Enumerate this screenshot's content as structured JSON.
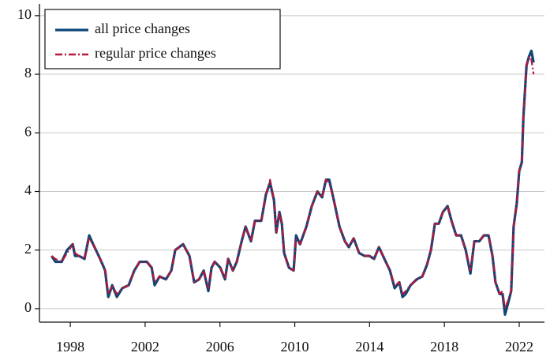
{
  "chart_data": {
    "type": "line",
    "x": [
      1997.0,
      1997.2,
      1997.54,
      1997.83,
      1998.13,
      1998.25,
      1998.46,
      1998.76,
      1999.01,
      1999.22,
      1999.52,
      1999.73,
      1999.86,
      2000.03,
      2000.24,
      2000.49,
      2000.78,
      2001.12,
      2001.42,
      2001.71,
      2002.09,
      2002.35,
      2002.51,
      2002.77,
      2003.11,
      2003.4,
      2003.61,
      2004.03,
      2004.37,
      2004.62,
      2004.88,
      2005.13,
      2005.38,
      2005.55,
      2005.72,
      2006.02,
      2006.27,
      2006.44,
      2006.69,
      2006.9,
      2007.16,
      2007.37,
      2007.66,
      2007.87,
      2008.21,
      2008.46,
      2008.68,
      2008.89,
      2009.01,
      2009.18,
      2009.31,
      2009.43,
      2009.69,
      2009.94,
      2010.07,
      2010.28,
      2010.62,
      2010.91,
      2011.21,
      2011.46,
      2011.67,
      2011.84,
      2012.09,
      2012.39,
      2012.68,
      2012.89,
      2013.15,
      2013.44,
      2013.73,
      2013.99,
      2014.24,
      2014.5,
      2014.79,
      2015.09,
      2015.34,
      2015.59,
      2015.76,
      2015.93,
      2016.19,
      2016.52,
      2016.82,
      2017.07,
      2017.28,
      2017.49,
      2017.7,
      2017.92,
      2018.17,
      2018.38,
      2018.63,
      2018.89,
      2019.14,
      2019.39,
      2019.6,
      2019.86,
      2020.11,
      2020.36,
      2020.57,
      2020.73,
      2020.95,
      2021.11,
      2021.24,
      2021.41,
      2021.57,
      2021.7,
      2021.87,
      2022.0,
      2022.14,
      2022.22,
      2022.39,
      2022.52,
      2022.65,
      2022.77
    ],
    "series": [
      {
        "name": "all price changes",
        "color": "#0d4677",
        "style": "solid",
        "values": [
          1.8,
          1.6,
          1.6,
          2.0,
          2.2,
          1.8,
          1.8,
          1.7,
          2.5,
          2.2,
          1.8,
          1.5,
          1.3,
          0.4,
          0.8,
          0.4,
          0.7,
          0.8,
          1.3,
          1.6,
          1.6,
          1.4,
          0.8,
          1.1,
          1.0,
          1.3,
          2.0,
          2.2,
          1.8,
          0.9,
          1.0,
          1.3,
          0.6,
          1.4,
          1.6,
          1.4,
          1.0,
          1.7,
          1.3,
          1.6,
          2.3,
          2.8,
          2.3,
          3.0,
          3.0,
          3.9,
          4.3,
          3.7,
          2.6,
          3.3,
          2.9,
          1.9,
          1.4,
          1.3,
          2.5,
          2.2,
          2.8,
          3.5,
          4.0,
          3.8,
          4.4,
          4.4,
          3.7,
          2.8,
          2.3,
          2.1,
          2.4,
          1.9,
          1.8,
          1.8,
          1.7,
          2.1,
          1.7,
          1.3,
          0.7,
          0.9,
          0.4,
          0.5,
          0.8,
          1.0,
          1.1,
          1.5,
          2.0,
          2.9,
          2.9,
          3.3,
          3.5,
          3.0,
          2.5,
          2.5,
          2.0,
          1.2,
          2.3,
          2.3,
          2.5,
          2.5,
          1.8,
          0.9,
          0.5,
          0.5,
          -0.2,
          0.2,
          0.6,
          2.8,
          3.6,
          4.7,
          5.0,
          6.5,
          8.3,
          8.6,
          8.8,
          8.4
        ]
      },
      {
        "name": "regular price changes",
        "color": "#b5173d",
        "style": "dashdot",
        "values": [
          1.8,
          1.7,
          1.6,
          1.9,
          2.2,
          1.9,
          1.8,
          1.7,
          2.4,
          2.2,
          1.8,
          1.5,
          1.3,
          0.5,
          0.8,
          0.5,
          0.7,
          0.8,
          1.3,
          1.6,
          1.6,
          1.4,
          0.9,
          1.1,
          1.0,
          1.3,
          2.0,
          2.2,
          1.8,
          0.9,
          1.0,
          1.3,
          0.7,
          1.4,
          1.6,
          1.4,
          1.0,
          1.7,
          1.3,
          1.6,
          2.3,
          2.8,
          2.3,
          3.0,
          3.0,
          3.9,
          4.4,
          3.7,
          2.6,
          3.3,
          2.9,
          1.9,
          1.4,
          1.3,
          2.4,
          2.2,
          2.8,
          3.5,
          4.0,
          3.8,
          4.4,
          4.3,
          3.7,
          2.8,
          2.3,
          2.1,
          2.4,
          1.9,
          1.8,
          1.8,
          1.7,
          2.1,
          1.7,
          1.3,
          0.8,
          0.9,
          0.5,
          0.6,
          0.8,
          1.0,
          1.1,
          1.5,
          2.0,
          2.9,
          2.9,
          3.3,
          3.5,
          3.0,
          2.5,
          2.5,
          2.0,
          1.3,
          2.3,
          2.3,
          2.5,
          2.5,
          1.8,
          0.9,
          0.5,
          0.6,
          0.0,
          0.3,
          0.6,
          2.8,
          3.6,
          4.7,
          5.0,
          6.5,
          8.3,
          8.6,
          8.5,
          8.0
        ]
      }
    ],
    "xlim": [
      1996.35,
      2023.35
    ],
    "xticks": [
      1998,
      2002,
      2006,
      2010,
      2014,
      2018,
      2022
    ],
    "ylim": [
      -0.46,
      10.4
    ],
    "yticks": [
      0,
      2,
      4,
      6,
      8,
      10
    ],
    "grid": true,
    "legend": "upper left"
  }
}
